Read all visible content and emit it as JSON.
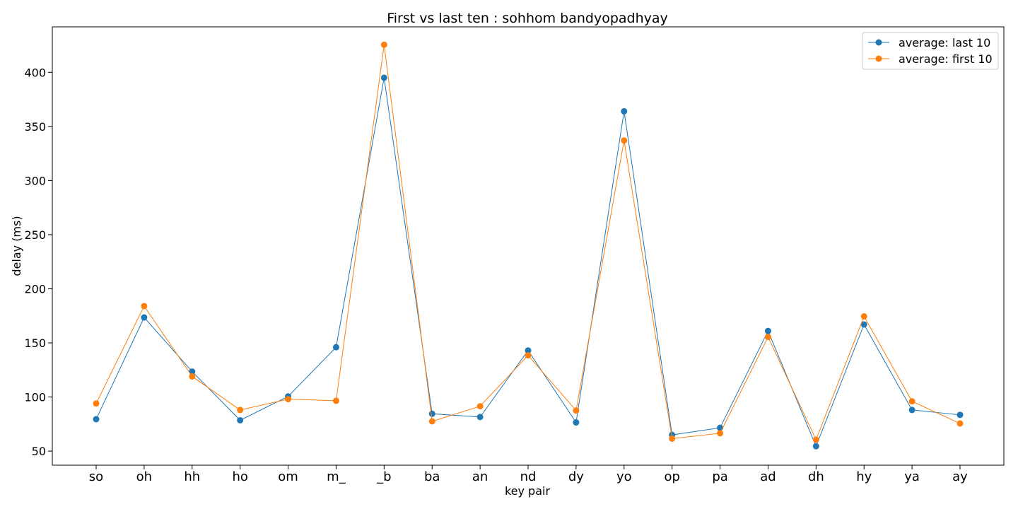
{
  "chart_data": {
    "type": "line",
    "title": "First vs last ten : sohhom bandyopadhyay",
    "xlabel": "key pair",
    "ylabel": "delay (ms)",
    "categories": [
      "so",
      "oh",
      "hh",
      "ho",
      "om",
      "m_",
      "_b",
      "ba",
      "an",
      "nd",
      "dy",
      "yo",
      "op",
      "pa",
      "ad",
      "dh",
      "hy",
      "ya",
      "ay"
    ],
    "ylim": [
      37,
      442
    ],
    "yticks": [
      50,
      100,
      150,
      200,
      250,
      300,
      350,
      400
    ],
    "grid": false,
    "legend_position": "top-right",
    "series": [
      {
        "name": "average: last 10",
        "color": "#1f77b4",
        "values": [
          79.5,
          173.5,
          123.5,
          78.5,
          100.5,
          146,
          395,
          84.5,
          81.5,
          143,
          76.5,
          364,
          65,
          71.5,
          161,
          54.5,
          167,
          88,
          83.5
        ]
      },
      {
        "name": "average: first 10",
        "color": "#ff7f0e",
        "values": [
          94,
          184,
          119,
          88,
          98,
          96.5,
          425.5,
          77.5,
          91.5,
          138.5,
          87.5,
          337,
          61.5,
          66.5,
          155.5,
          60.5,
          174.5,
          96,
          75.5
        ]
      }
    ]
  }
}
